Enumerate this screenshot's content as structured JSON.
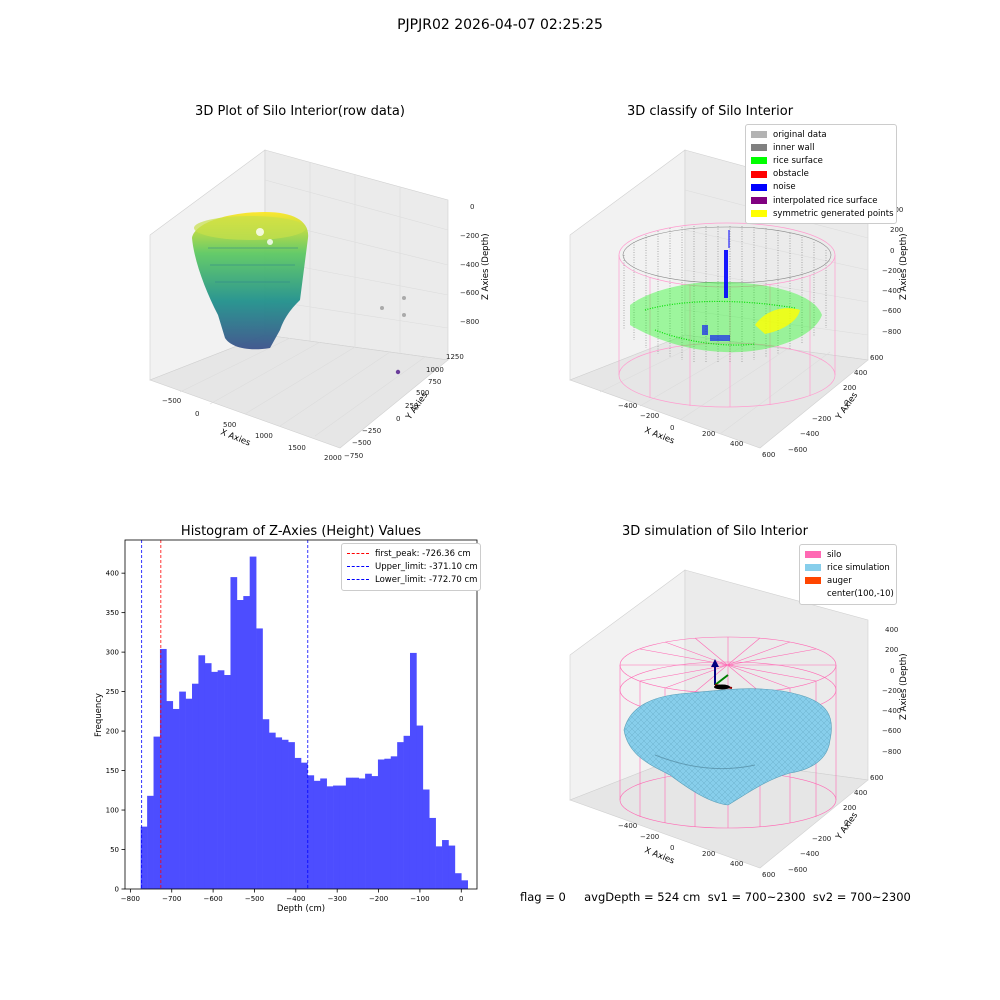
{
  "suptitle": "PJPJR02 2026-04-07 02:25:25",
  "chart_data": [
    {
      "type": "scatter",
      "title": "3D Plot of Silo Interior(row data)",
      "xlabel": "X Axies",
      "ylabel": "Y Axies",
      "zlabel": "Z Axies (Depth)",
      "x_ticks": [
        "−500",
        "0",
        "500",
        "1000",
        "1500",
        "2000"
      ],
      "y_ticks": [
        "−750",
        "−500",
        "−250",
        "0",
        "250",
        "500",
        "750",
        "1000",
        "1250"
      ],
      "z_ticks": [
        "0",
        "−200",
        "−400",
        "−600",
        "−800"
      ],
      "colormap": "viridis"
    },
    {
      "type": "scatter",
      "title": "3D classify of Silo Interior",
      "xlabel": "X Axies",
      "ylabel": "Y Axies",
      "zlabel": "Z Axies (Depth)",
      "x_ticks": [
        "−400",
        "−200",
        "0",
        "200",
        "400",
        "600"
      ],
      "y_ticks": [
        "−600",
        "−400",
        "−200",
        "0",
        "200",
        "400",
        "600"
      ],
      "z_ticks": [
        "400",
        "200",
        "0",
        "−200",
        "−400",
        "−600",
        "−800"
      ],
      "legend": [
        {
          "label": "original data",
          "color": "#b3b3b3"
        },
        {
          "label": "inner wall",
          "color": "#808080"
        },
        {
          "label": "rice surface",
          "color": "#00ff00"
        },
        {
          "label": "obstacle",
          "color": "#ff0000"
        },
        {
          "label": "noise",
          "color": "#0000ff"
        },
        {
          "label": "interpolated rice surface",
          "color": "#800080"
        },
        {
          "label": "symmetric generated points",
          "color": "#ffff00"
        }
      ]
    },
    {
      "type": "bar",
      "title": "Histogram of Z-Axies (Height) Values",
      "xlabel": "Depth (cm)",
      "ylabel": "Frequency",
      "xlim": [
        -813,
        38
      ],
      "ylim": [
        0,
        442
      ],
      "x_ticks": [
        -800,
        -700,
        -600,
        -500,
        -400,
        -300,
        -200,
        -100,
        0
      ],
      "y_ticks": [
        0,
        50,
        100,
        150,
        200,
        250,
        300,
        350,
        400
      ],
      "bar_color": "#4d4dff",
      "bin_start": -775,
      "bin_width": 15.5,
      "values": [
        79,
        118,
        193,
        304,
        238,
        228,
        250,
        241,
        260,
        296,
        286,
        275,
        277,
        271,
        395,
        366,
        371,
        421,
        330,
        215,
        198,
        192,
        189,
        186,
        166,
        160,
        144,
        137,
        140,
        130,
        131,
        131,
        141,
        141,
        140,
        146,
        143,
        164,
        165,
        168,
        186,
        194,
        299,
        207,
        126,
        90,
        54,
        62,
        55,
        20,
        11
      ],
      "vlines": [
        {
          "label": "first_peak: -726.36 cm",
          "x": -726.36,
          "color": "#ff0000"
        },
        {
          "label": "Upper_limit: -371.10 cm",
          "x": -371.1,
          "color": "#0000ff"
        },
        {
          "label": "Lower_limit: -772.70 cm",
          "x": -772.7,
          "color": "#0000ff"
        }
      ]
    },
    {
      "type": "surface",
      "title": "3D simulation of Silo Interior",
      "xlabel": "X Axies",
      "ylabel": "Y Axies",
      "zlabel": "Z Axies (Depth)",
      "x_ticks": [
        "−400",
        "−200",
        "0",
        "200",
        "400",
        "600"
      ],
      "y_ticks": [
        "−600",
        "−400",
        "−200",
        "0",
        "200",
        "400",
        "600"
      ],
      "z_ticks": [
        "400",
        "200",
        "0",
        "−200",
        "−400",
        "−600",
        "−800"
      ],
      "legend": [
        {
          "label": "silo",
          "color": "#ff69b4"
        },
        {
          "label": "rice simulation",
          "color": "#87ceeb"
        },
        {
          "label": "auger",
          "color": "#ff4500"
        },
        {
          "label": "center(100,-10)",
          "color": ""
        }
      ]
    }
  ],
  "footer": "flag = 0     avgDepth = 524 cm  sv1 = 700~2300  sv2 = 700~2300"
}
